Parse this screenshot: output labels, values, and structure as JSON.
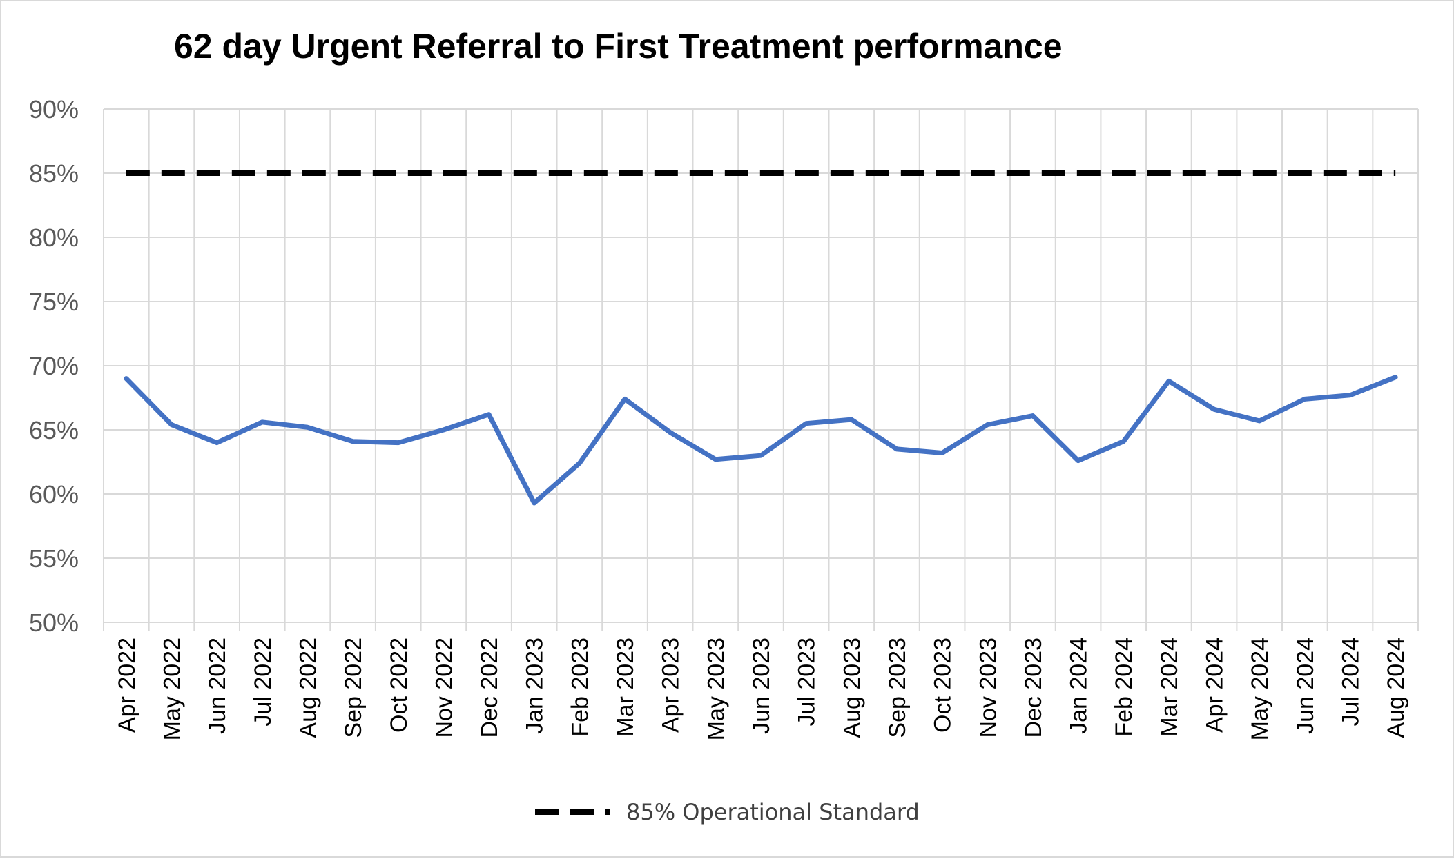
{
  "chart_data": {
    "type": "line",
    "title": "62 day Urgent Referral to First Treatment performance",
    "categories": [
      "Apr 2022",
      "May 2022",
      "Jun 2022",
      "Jul 2022",
      "Aug 2022",
      "Sep 2022",
      "Oct 2022",
      "Nov 2022",
      "Dec 2022",
      "Jan 2023",
      "Feb 2023",
      "Mar 2023",
      "Apr 2023",
      "May 2023",
      "Jun 2023",
      "Jul 2023",
      "Aug 2023",
      "Sep 2023",
      "Oct 2023",
      "Nov 2023",
      "Dec 2023",
      "Jan 2024",
      "Feb 2024",
      "Mar 2024",
      "Apr 2024",
      "May 2024",
      "Jun 2024",
      "Jul 2024",
      "Aug 2024"
    ],
    "series": [
      {
        "values": [
          69.0,
          65.4,
          64.0,
          65.6,
          65.2,
          64.1,
          64.0,
          65.0,
          66.2,
          59.3,
          62.4,
          67.4,
          64.8,
          62.7,
          63.0,
          65.5,
          65.8,
          63.5,
          63.2,
          65.4,
          66.1,
          62.6,
          64.1,
          68.8,
          66.6,
          65.7,
          67.4,
          67.7,
          69.1
        ],
        "color": "#4472c4"
      },
      {
        "name": "85% Operational Standard",
        "values": [
          85,
          85,
          85,
          85,
          85,
          85,
          85,
          85,
          85,
          85,
          85,
          85,
          85,
          85,
          85,
          85,
          85,
          85,
          85,
          85,
          85,
          85,
          85,
          85,
          85,
          85,
          85,
          85,
          85
        ],
        "color": "#000000",
        "dashed": true
      }
    ],
    "ylim": [
      50,
      90
    ],
    "yticks": [
      "50%",
      "55%",
      "60%",
      "65%",
      "70%",
      "75%",
      "80%",
      "85%",
      "90%"
    ],
    "grid": true,
    "legend": "bottom"
  }
}
